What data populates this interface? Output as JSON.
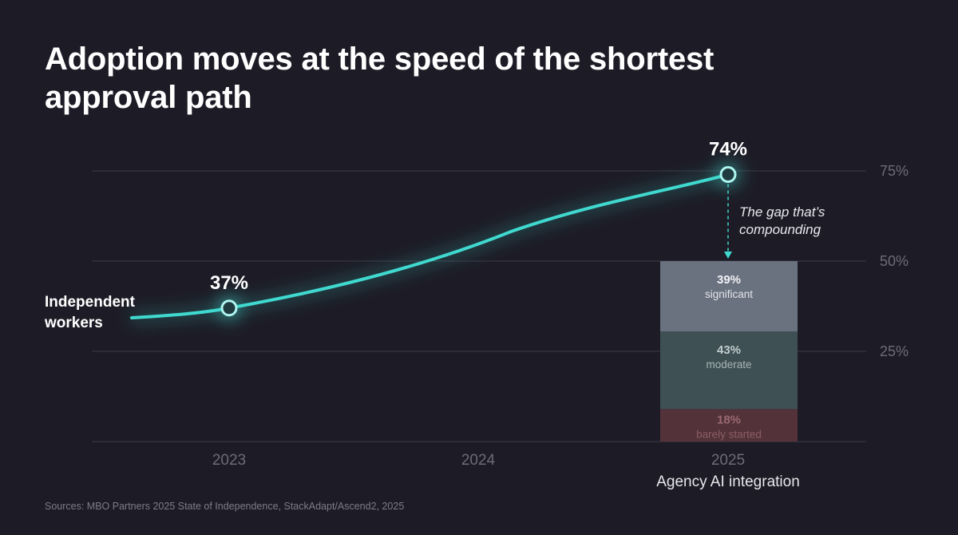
{
  "title": "Adoption moves at the speed of the shortest approval path",
  "source": "Sources: MBO Partners 2025 State of Independence, StackAdapt/Ascend2, 2025",
  "colors": {
    "background": "#1d1c26",
    "line": "#40d9cf",
    "grid": "#3b3a48",
    "tick": "#6d6b78",
    "significant": "#6a7280",
    "moderate": "#3e5054",
    "barely_started": "#53323a"
  },
  "chart_data": [
    {
      "type": "line",
      "series": [
        {
          "name": "Independent workers",
          "x": [
            "2023",
            "2025"
          ],
          "y": [
            37,
            74
          ],
          "point_labels": [
            "37%",
            "74%"
          ]
        }
      ],
      "x_categories": [
        "2023",
        "2024",
        "2025"
      ],
      "y_ticks": [
        "25%",
        "50%",
        "75%"
      ],
      "y_tick_values": [
        25,
        50,
        75
      ],
      "ylim": [
        0,
        75
      ],
      "grid": true
    },
    {
      "type": "bar",
      "stacked": true,
      "x": "2025",
      "name": "Agency AI integration",
      "segments": [
        {
          "label": "barely started",
          "value": 18,
          "value_label": "18%"
        },
        {
          "label": "moderate",
          "value": 43,
          "value_label": "43%"
        },
        {
          "label": "significant",
          "value": 39,
          "value_label": "39%"
        }
      ]
    }
  ],
  "annotation": {
    "lines": [
      "The gap that’s",
      "compounding"
    ]
  }
}
